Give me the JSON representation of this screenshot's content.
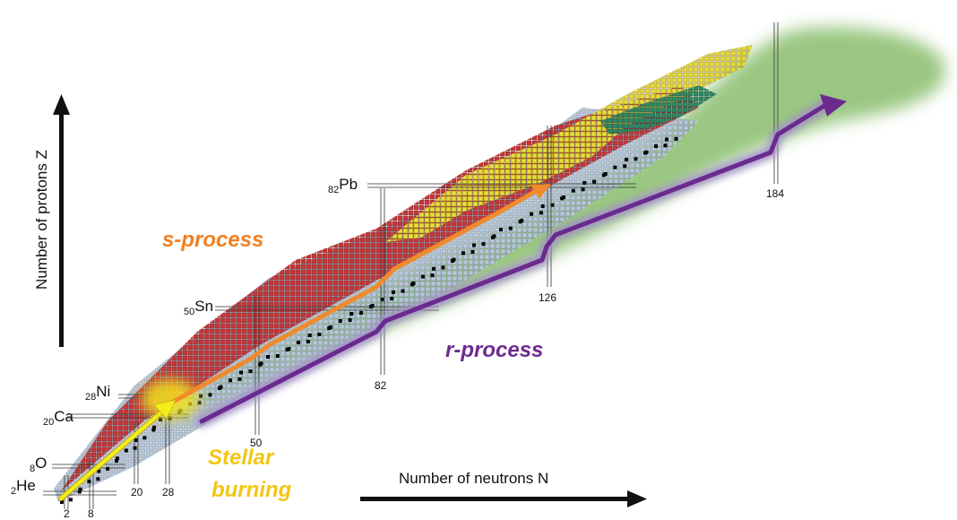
{
  "axes": {
    "y_title": "Number of protons Z",
    "x_title": "Number of neutrons N"
  },
  "elements": [
    {
      "z": "2",
      "symbol": "He"
    },
    {
      "z": "8",
      "symbol": "O"
    },
    {
      "z": "20",
      "symbol": "Ca"
    },
    {
      "z": "28",
      "symbol": "Ni"
    },
    {
      "z": "50",
      "symbol": "Sn"
    },
    {
      "z": "82",
      "symbol": "Pb"
    }
  ],
  "magic_neutron_numbers": [
    "2",
    "8",
    "20",
    "28",
    "50",
    "82",
    "126",
    "184"
  ],
  "processes": {
    "s": "s-process",
    "r": "r-process",
    "stellar_line1": "Stellar",
    "stellar_line2": "burning"
  },
  "colors": {
    "r_region": "#94c47c",
    "neutron_rich": "#b7c7d9",
    "proton_rich": "#c8373a",
    "heavy_unstable": "#e9dc3c",
    "fission": "#2e8a63",
    "stable": "#000000",
    "s_path": "#f08a2c",
    "r_path": "#6a2a8e",
    "stellar_path": "#f2ee1a",
    "s_label": "#f07f22",
    "r_label": "#6e2b8f",
    "stellar_label": "#f2c614"
  }
}
